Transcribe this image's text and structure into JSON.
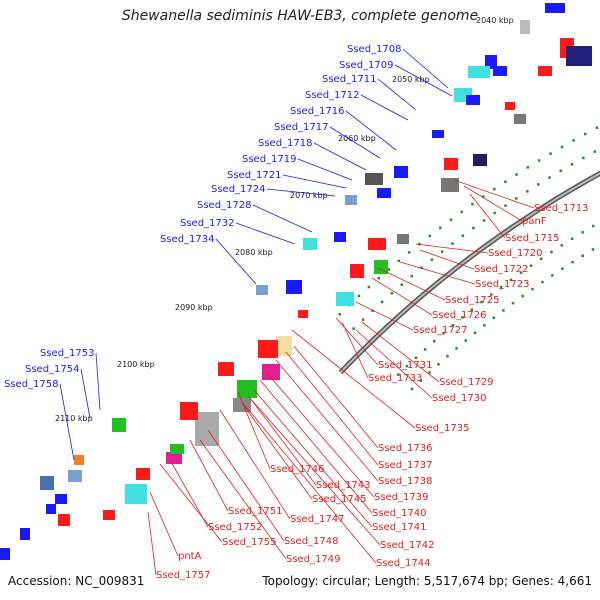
{
  "title": "Shewanella sediminis HAW-EB3, complete genome",
  "footer": {
    "accession": "Accession: NC_009831",
    "topology": "Topology: circular; Length: 5,517,674 bp; Genes: 4,661"
  },
  "colors": {
    "backbone": "#8a8a8a",
    "forward_gene": "#1a1aff",
    "reverse_gene": "#ff1a1a",
    "forward_label": "#1a1aff",
    "reverse_label": "#e02020",
    "tick_dot": "#2a8a2a"
  },
  "ticks": [
    {
      "label": "2040 kbp"
    },
    {
      "label": "2050 kbp"
    },
    {
      "label": "2060 kbp"
    },
    {
      "label": "2070 kbp"
    },
    {
      "label": "2080 kbp"
    },
    {
      "label": "2090 kbp"
    },
    {
      "label": "2100 kbp"
    },
    {
      "label": "2110 kbp"
    }
  ],
  "forward_labels": [
    "Ssed_1708",
    "Ssed_1709",
    "Ssed_1711",
    "Ssed_1712",
    "Ssed_1716",
    "Ssed_1717",
    "Ssed_1718",
    "Ssed_1719",
    "Ssed_1721",
    "Ssed_1724",
    "Ssed_1728",
    "Ssed_1732",
    "Ssed_1734",
    "Ssed_1753",
    "Ssed_1754",
    "Ssed_1758"
  ],
  "reverse_labels": [
    "Ssed_1713",
    "panF",
    "Ssed_1715",
    "Ssed_1720",
    "Ssed_1722",
    "Ssed_1723",
    "Ssed_1725",
    "Ssed_1726",
    "Ssed_1727",
    "Ssed_1731",
    "Ssed_1733",
    "Ssed_1729",
    "Ssed_1730",
    "Ssed_1735",
    "Ssed_1736",
    "Ssed_1737",
    "Ssed_1746",
    "Ssed_1743",
    "Ssed_1738",
    "Ssed_1745",
    "Ssed_1739",
    "Ssed_1751",
    "Ssed_1747",
    "Ssed_1740",
    "Ssed_1752",
    "Ssed_1741",
    "Ssed_1755",
    "Ssed_1748",
    "Ssed_1742",
    "pntA",
    "Ssed_1749",
    "Ssed_1744",
    "Ssed_1757"
  ]
}
